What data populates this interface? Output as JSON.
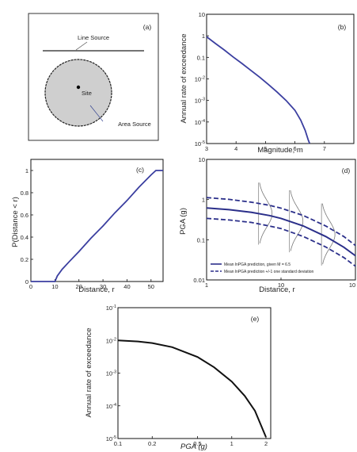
{
  "chart_data": [
    {
      "panel": "(a)",
      "type": "diagram",
      "labels": {
        "line": "Line Source",
        "site": "Site",
        "area": "Area Source"
      }
    },
    {
      "panel": "(b)",
      "type": "line",
      "xlabel": "Magnitude, m",
      "ylabel": "Annual rate of exceedance",
      "xlim": [
        3,
        8
      ],
      "ylim": [
        1e-05,
        10
      ],
      "yscale": "log",
      "xticks": [
        "3",
        "4",
        "5",
        "6",
        "7"
      ],
      "yticks": [
        "10^-5",
        "10^-4",
        "10^-3",
        "10^-2",
        "0.1",
        "1",
        "10"
      ],
      "series": [
        {
          "color": "#3b3fa0",
          "x": [
            3.0,
            3.3,
            3.6,
            3.9,
            4.2,
            4.5,
            4.8,
            5.1,
            5.4,
            5.7,
            6.0,
            6.2,
            6.35,
            6.45,
            6.5
          ],
          "y": [
            0.9,
            0.44,
            0.22,
            0.105,
            0.052,
            0.025,
            0.012,
            0.0055,
            0.0024,
            0.001,
            0.00035,
            0.00012,
            4e-05,
            1.5e-05,
            1e-05
          ]
        }
      ]
    },
    {
      "panel": "(c)",
      "type": "line",
      "xlabel": "Distance, r",
      "ylabel": "P(Distance < r)",
      "xlim": [
        0,
        55
      ],
      "ylim": [
        0,
        1.1
      ],
      "xticks": [
        "0",
        "10",
        "20",
        "30",
        "40",
        "50"
      ],
      "yticks": [
        "0",
        "0.2",
        "0.4",
        "0.6",
        "0.8",
        "1"
      ],
      "series": [
        {
          "color": "#3b3fa0",
          "x": [
            0,
            10,
            11,
            13,
            16,
            20,
            25,
            30,
            35,
            40,
            45,
            50,
            52,
            55
          ],
          "y": [
            0,
            0,
            0.05,
            0.11,
            0.18,
            0.27,
            0.39,
            0.5,
            0.62,
            0.73,
            0.85,
            0.96,
            1,
            1
          ]
        }
      ]
    },
    {
      "panel": "(d)",
      "type": "line",
      "xlabel": "Distance, r",
      "ylabel": "PGA (g)",
      "xlim": [
        1,
        100
      ],
      "ylim": [
        0.01,
        10
      ],
      "xscale": "log",
      "yscale": "log",
      "xticks": [
        "1",
        "10",
        "10"
      ],
      "yticks": [
        "0.01",
        "0.1",
        "1",
        "10"
      ],
      "legend": [
        "Mean lnPGA prediction, given M = 6.5",
        "Mean lnPGA prediction +/-1 one standard deviation"
      ],
      "series": [
        {
          "style": "solid",
          "color": "#2b2f8a",
          "x": [
            1,
            2,
            4,
            7,
            10,
            20,
            40,
            70,
            100
          ],
          "y": [
            0.62,
            0.56,
            0.48,
            0.4,
            0.34,
            0.22,
            0.12,
            0.065,
            0.04
          ]
        },
        {
          "style": "dashed",
          "color": "#2b2f8a",
          "x": [
            1,
            2,
            4,
            7,
            10,
            20,
            40,
            70,
            100
          ],
          "y": [
            1.12,
            1.01,
            0.86,
            0.72,
            0.61,
            0.4,
            0.22,
            0.12,
            0.072
          ]
        },
        {
          "style": "dashed",
          "color": "#2b2f8a",
          "x": [
            1,
            2,
            4,
            7,
            10,
            20,
            40,
            70,
            100
          ],
          "y": [
            0.34,
            0.31,
            0.27,
            0.22,
            0.19,
            0.12,
            0.066,
            0.036,
            0.022
          ]
        }
      ],
      "distributions_at_r": [
        5,
        13,
        35
      ]
    },
    {
      "panel": "(e)",
      "type": "line",
      "xlabel": "PGA (g)",
      "ylabel": "Annual rate of exceedance",
      "xlim": [
        0.1,
        2.2
      ],
      "ylim": [
        1e-05,
        0.1
      ],
      "xscale": "log",
      "yscale": "log",
      "xticks": [
        "0.1",
        "0.2",
        "0.5",
        "1",
        "2"
      ],
      "yticks": [
        "10^-5",
        "10^-4",
        "10^-3",
        "10^-2",
        "10^-1"
      ],
      "series": [
        {
          "color": "#111111",
          "x": [
            0.1,
            0.15,
            0.2,
            0.3,
            0.5,
            0.7,
            1.0,
            1.3,
            1.6,
            2.0
          ],
          "y": [
            0.01,
            0.0093,
            0.0083,
            0.0062,
            0.0031,
            0.0015,
            0.00055,
            0.0002,
            7e-05,
            1.1e-05
          ]
        }
      ]
    }
  ]
}
